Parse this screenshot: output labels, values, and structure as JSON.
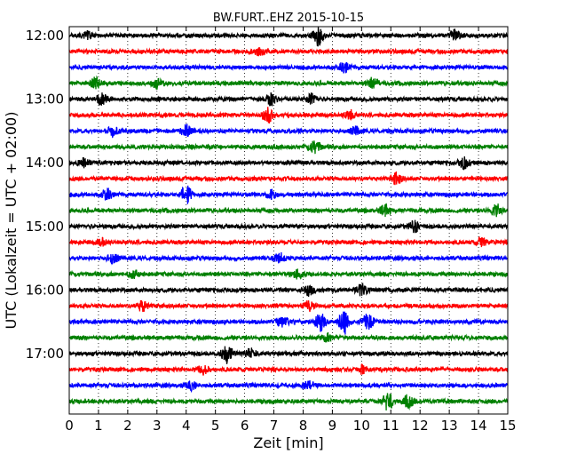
{
  "chart_data": {
    "type": "line",
    "title": "BW.FURT..EHZ 2015-10-15",
    "xlabel": "Zeit  [min]",
    "ylabel": "UTC (Lokalzeit = UTC + 02:00)",
    "xlim": [
      0,
      15
    ],
    "x_ticks": [
      "0",
      "1",
      "2",
      "3",
      "4",
      "5",
      "6",
      "7",
      "8",
      "9",
      "10",
      "11",
      "12",
      "13",
      "14",
      "15"
    ],
    "y_ticks": [
      "12:00",
      "13:00",
      "14:00",
      "15:00",
      "16:00",
      "17:00"
    ],
    "grid": true,
    "colors": [
      "#000000",
      "#ff0000",
      "#0000ff",
      "#008000"
    ],
    "traces": [
      {
        "start": "12:00",
        "color": "#000000",
        "events": [
          {
            "t": 8.5,
            "amp": 1.0
          },
          {
            "t": 0.6,
            "amp": 0.35
          },
          {
            "t": 13.2,
            "amp": 0.5
          }
        ]
      },
      {
        "start": "12:15",
        "color": "#ff0000",
        "events": [
          {
            "t": 6.5,
            "amp": 0.35
          }
        ]
      },
      {
        "start": "12:30",
        "color": "#0000ff",
        "events": [
          {
            "t": 9.4,
            "amp": 0.55
          }
        ]
      },
      {
        "start": "12:45",
        "color": "#008000",
        "events": [
          {
            "t": 0.9,
            "amp": 0.5
          },
          {
            "t": 3.0,
            "amp": 0.5
          },
          {
            "t": 10.4,
            "amp": 0.55
          }
        ]
      },
      {
        "start": "13:00",
        "color": "#000000",
        "events": [
          {
            "t": 1.1,
            "amp": 0.5
          },
          {
            "t": 6.9,
            "amp": 0.55
          },
          {
            "t": 8.3,
            "amp": 0.5
          }
        ]
      },
      {
        "start": "13:15",
        "color": "#ff0000",
        "events": [
          {
            "t": 6.8,
            "amp": 0.75
          },
          {
            "t": 9.6,
            "amp": 0.45
          }
        ]
      },
      {
        "start": "13:30",
        "color": "#0000ff",
        "events": [
          {
            "t": 1.5,
            "amp": 0.45
          },
          {
            "t": 4.0,
            "amp": 0.5
          },
          {
            "t": 9.8,
            "amp": 0.4
          }
        ]
      },
      {
        "start": "13:45",
        "color": "#008000",
        "events": [
          {
            "t": 8.4,
            "amp": 0.7
          }
        ]
      },
      {
        "start": "14:00",
        "color": "#000000",
        "events": [
          {
            "t": 0.5,
            "amp": 0.4
          },
          {
            "t": 13.5,
            "amp": 0.5
          }
        ]
      },
      {
        "start": "14:15",
        "color": "#ff0000",
        "events": [
          {
            "t": 11.2,
            "amp": 0.55
          }
        ]
      },
      {
        "start": "14:30",
        "color": "#0000ff",
        "events": [
          {
            "t": 1.3,
            "amp": 0.6
          },
          {
            "t": 4.0,
            "amp": 0.85
          },
          {
            "t": 6.9,
            "amp": 0.4
          }
        ]
      },
      {
        "start": "14:45",
        "color": "#008000",
        "events": [
          {
            "t": 10.8,
            "amp": 0.5
          },
          {
            "t": 14.6,
            "amp": 0.6
          }
        ]
      },
      {
        "start": "15:00",
        "color": "#000000",
        "events": [
          {
            "t": 11.8,
            "amp": 0.55
          }
        ]
      },
      {
        "start": "15:15",
        "color": "#ff0000",
        "events": [
          {
            "t": 1.1,
            "amp": 0.35
          },
          {
            "t": 14.1,
            "amp": 0.4
          }
        ]
      },
      {
        "start": "15:30",
        "color": "#0000ff",
        "events": [
          {
            "t": 1.5,
            "amp": 0.45
          },
          {
            "t": 7.2,
            "amp": 0.45
          }
        ]
      },
      {
        "start": "15:45",
        "color": "#008000",
        "events": [
          {
            "t": 7.8,
            "amp": 0.4
          },
          {
            "t": 2.2,
            "amp": 0.35
          }
        ]
      },
      {
        "start": "16:00",
        "color": "#000000",
        "events": [
          {
            "t": 8.2,
            "amp": 0.55
          },
          {
            "t": 10.0,
            "amp": 0.55
          }
        ]
      },
      {
        "start": "16:15",
        "color": "#ff0000",
        "events": [
          {
            "t": 2.5,
            "amp": 0.5
          },
          {
            "t": 8.2,
            "amp": 0.45
          }
        ]
      },
      {
        "start": "16:30",
        "color": "#0000ff",
        "events": [
          {
            "t": 7.3,
            "amp": 0.55
          },
          {
            "t": 8.6,
            "amp": 0.85
          },
          {
            "t": 9.4,
            "amp": 1.2
          },
          {
            "t": 10.2,
            "amp": 0.7
          }
        ]
      },
      {
        "start": "16:45",
        "color": "#008000",
        "events": [
          {
            "t": 8.8,
            "amp": 0.4
          }
        ]
      },
      {
        "start": "17:00",
        "color": "#000000",
        "events": [
          {
            "t": 5.4,
            "amp": 1.0
          },
          {
            "t": 6.2,
            "amp": 0.5
          }
        ]
      },
      {
        "start": "17:15",
        "color": "#ff0000",
        "events": [
          {
            "t": 4.6,
            "amp": 0.45
          },
          {
            "t": 10.0,
            "amp": 0.35
          }
        ]
      },
      {
        "start": "17:30",
        "color": "#0000ff",
        "events": [
          {
            "t": 4.2,
            "amp": 0.4
          },
          {
            "t": 8.2,
            "amp": 0.35
          }
        ]
      },
      {
        "start": "17:45",
        "color": "#008000",
        "events": [
          {
            "t": 10.9,
            "amp": 0.9
          },
          {
            "t": 11.6,
            "amp": 0.6
          }
        ]
      }
    ]
  }
}
